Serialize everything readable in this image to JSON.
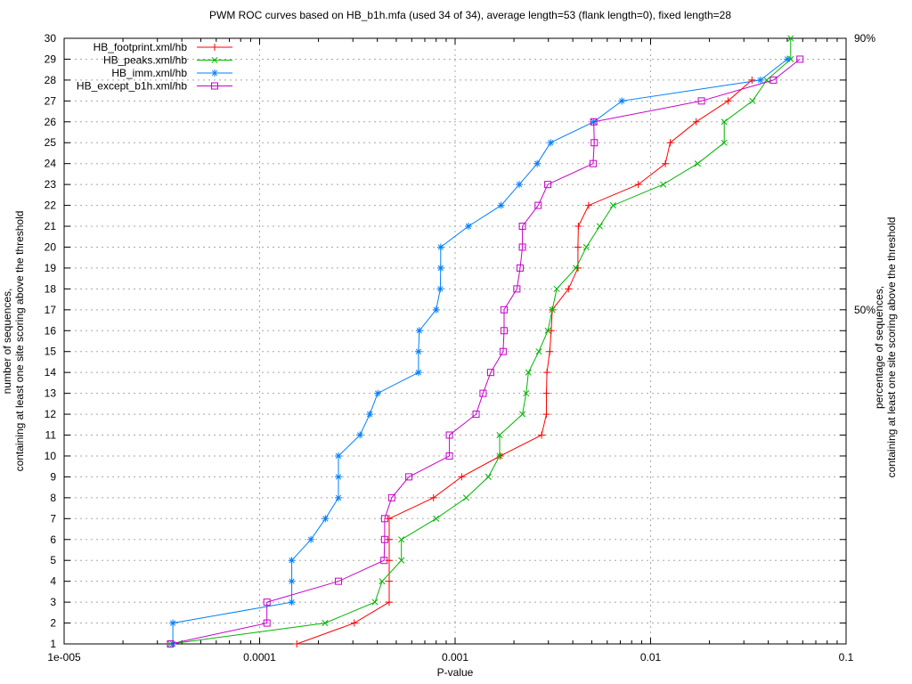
{
  "title": "PWM ROC curves based on HB_b1h.mfa (used 34 of 34), average length=53 (flank length=0), fixed length=28",
  "colors": {
    "footprint": "#ff0000",
    "peaks": "#00b400",
    "imm": "#0080ff",
    "except_b1h": "#c800c8",
    "grid": "#a8a8a8",
    "frame": "#000000"
  },
  "legend": {
    "position": "top-left-inside",
    "items": [
      {
        "label": "HB_footprint.xml/hb",
        "series": "footprint"
      },
      {
        "label": "HB_peaks.xml/hb",
        "series": "peaks"
      },
      {
        "label": "HB_imm.xml/hb",
        "series": "imm"
      },
      {
        "label": "HB_except_b1h.xml/hb",
        "series": "except_b1h"
      }
    ]
  },
  "chart_data": {
    "type": "line",
    "title": "PWM ROC curves based on HB_b1h.mfa (used 34 of 34), average length=53 (flank length=0), fixed length=28",
    "xlabel": "P-value",
    "ylabel_left_line1": "number of sequences,",
    "ylabel_left_line2": "containing at least one site scoring above the threshold",
    "ylabel_right_line1": "percentage of sequences,",
    "ylabel_right_line2": "containing at least one site scoring above the threshold",
    "x_scale": "log",
    "xlim": [
      1e-05,
      0.1
    ],
    "x_tick_labels": [
      "1e-005",
      "0.0001",
      "0.001",
      "0.01",
      "0.1"
    ],
    "x_tick_values": [
      1e-05,
      0.0001,
      0.001,
      0.01,
      0.1
    ],
    "ylim": [
      1,
      30
    ],
    "y_tick_step": 1,
    "grid": true,
    "right_axis_labels": [
      {
        "text": "90%",
        "count": 30.6
      },
      {
        "text": "50%",
        "count": 17
      }
    ],
    "total_sequences": 34,
    "series": [
      {
        "name": "HB_footprint.xml/hb",
        "key": "footprint",
        "marker": "plus",
        "points": [
          [
            0.000155,
            1
          ],
          [
            0.000305,
            2
          ],
          [
            0.00046,
            3
          ],
          [
            0.00046,
            4
          ],
          [
            0.00046,
            5
          ],
          [
            0.00046,
            6
          ],
          [
            0.00046,
            7
          ],
          [
            0.000775,
            8
          ],
          [
            0.00108,
            9
          ],
          [
            0.0017,
            10
          ],
          [
            0.00277,
            11
          ],
          [
            0.00293,
            12
          ],
          [
            0.00293,
            13
          ],
          [
            0.00295,
            14
          ],
          [
            0.00305,
            15
          ],
          [
            0.0031,
            16
          ],
          [
            0.00314,
            17
          ],
          [
            0.0038,
            18
          ],
          [
            0.00425,
            19
          ],
          [
            0.00425,
            20
          ],
          [
            0.00427,
            21
          ],
          [
            0.00482,
            22
          ],
          [
            0.00865,
            23
          ],
          [
            0.0119,
            24
          ],
          [
            0.0126,
            25
          ],
          [
            0.0171,
            26
          ],
          [
            0.0249,
            27
          ],
          [
            0.033,
            28
          ]
        ]
      },
      {
        "name": "HB_peaks.xml/hb",
        "key": "peaks",
        "marker": "cross",
        "points": [
          [
            3.5e-05,
            1
          ],
          [
            0.000216,
            2
          ],
          [
            0.000389,
            3
          ],
          [
            0.000423,
            4
          ],
          [
            0.000531,
            5
          ],
          [
            0.000531,
            6
          ],
          [
            0.0008,
            7
          ],
          [
            0.00114,
            8
          ],
          [
            0.00148,
            9
          ],
          [
            0.00169,
            10
          ],
          [
            0.00169,
            11
          ],
          [
            0.00221,
            12
          ],
          [
            0.00231,
            13
          ],
          [
            0.00237,
            14
          ],
          [
            0.00268,
            15
          ],
          [
            0.00298,
            16
          ],
          [
            0.00314,
            17
          ],
          [
            0.00331,
            18
          ],
          [
            0.00415,
            19
          ],
          [
            0.00469,
            20
          ],
          [
            0.00549,
            21
          ],
          [
            0.00643,
            22
          ],
          [
            0.0116,
            23
          ],
          [
            0.0174,
            24
          ],
          [
            0.0238,
            25
          ],
          [
            0.0238,
            26
          ],
          [
            0.0332,
            27
          ],
          [
            0.0393,
            28
          ],
          [
            0.0521,
            29
          ],
          [
            0.0521,
            30
          ]
        ]
      },
      {
        "name": "HB_imm.xml/hb",
        "key": "imm",
        "marker": "asterisk",
        "points": [
          [
            3.6e-05,
            1
          ],
          [
            3.6e-05,
            2
          ],
          [
            0.000146,
            3
          ],
          [
            0.000146,
            4
          ],
          [
            0.000146,
            5
          ],
          [
            0.000183,
            6
          ],
          [
            0.000217,
            7
          ],
          [
            0.000253,
            8
          ],
          [
            0.000253,
            9
          ],
          [
            0.000253,
            10
          ],
          [
            0.000326,
            11
          ],
          [
            0.000366,
            12
          ],
          [
            0.000402,
            13
          ],
          [
            0.00065,
            14
          ],
          [
            0.00065,
            15
          ],
          [
            0.000656,
            16
          ],
          [
            0.0008,
            17
          ],
          [
            0.00084,
            18
          ],
          [
            0.000844,
            19
          ],
          [
            0.000844,
            20
          ],
          [
            0.00117,
            21
          ],
          [
            0.00172,
            22
          ],
          [
            0.00213,
            23
          ],
          [
            0.00263,
            24
          ],
          [
            0.00308,
            25
          ],
          [
            0.00512,
            26
          ],
          [
            0.00713,
            27
          ],
          [
            0.0365,
            28
          ],
          [
            0.0501,
            29
          ]
        ]
      },
      {
        "name": "HB_except_b1h.xml/hb",
        "key": "except_b1h",
        "marker": "square",
        "points": [
          [
            3.5e-05,
            1
          ],
          [
            0.000109,
            2
          ],
          [
            0.000109,
            3
          ],
          [
            0.000253,
            4
          ],
          [
            0.000433,
            5
          ],
          [
            0.000436,
            6
          ],
          [
            0.000436,
            7
          ],
          [
            0.000474,
            8
          ],
          [
            0.00058,
            9
          ],
          [
            0.000935,
            10
          ],
          [
            0.000935,
            11
          ],
          [
            0.00128,
            12
          ],
          [
            0.00139,
            13
          ],
          [
            0.00152,
            14
          ],
          [
            0.00176,
            15
          ],
          [
            0.00178,
            16
          ],
          [
            0.00178,
            17
          ],
          [
            0.00207,
            18
          ],
          [
            0.00215,
            19
          ],
          [
            0.00221,
            20
          ],
          [
            0.00221,
            21
          ],
          [
            0.00266,
            22
          ],
          [
            0.00298,
            23
          ],
          [
            0.00508,
            24
          ],
          [
            0.00515,
            25
          ],
          [
            0.00512,
            26
          ],
          [
            0.0182,
            27
          ],
          [
            0.0425,
            28
          ],
          [
            0.0581,
            29
          ]
        ]
      }
    ]
  }
}
